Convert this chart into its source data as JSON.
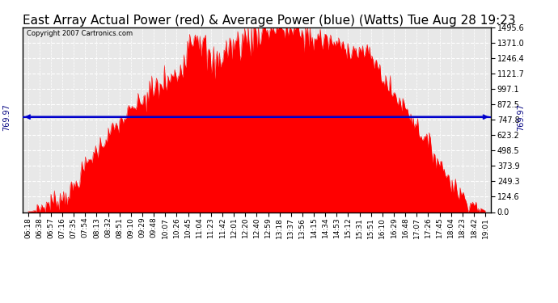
{
  "title": "East Array Actual Power (red) & Average Power (blue) (Watts) Tue Aug 28 19:23",
  "copyright_text": "Copyright 2007 Cartronics.com",
  "avg_power": 769.97,
  "y_max": 1495.6,
  "y_min": 0.0,
  "y_ticks": [
    0.0,
    124.6,
    249.3,
    373.9,
    498.5,
    623.2,
    747.8,
    872.5,
    997.1,
    1121.7,
    1246.4,
    1371.0,
    1495.6
  ],
  "x_labels": [
    "06:18",
    "06:38",
    "06:57",
    "07:16",
    "07:35",
    "07:54",
    "08:13",
    "08:32",
    "08:51",
    "09:10",
    "09:29",
    "09:48",
    "10:07",
    "10:26",
    "10:45",
    "11:04",
    "11:23",
    "11:42",
    "12:01",
    "12:20",
    "12:40",
    "12:59",
    "13:18",
    "13:37",
    "13:56",
    "14:15",
    "14:34",
    "14:53",
    "15:12",
    "15:31",
    "15:51",
    "16:10",
    "16:29",
    "16:48",
    "17:07",
    "17:26",
    "17:45",
    "18:04",
    "18:23",
    "18:42",
    "19:01"
  ],
  "background_color": "#ffffff",
  "plot_bg_color": "#e8e8e8",
  "grid_color": "#ffffff",
  "red_color": "#ff0000",
  "blue_color": "#0000cc",
  "title_fontsize": 11,
  "tick_fontsize": 7,
  "label_color": "#000000",
  "avg_label_color": "#000080",
  "power_values": [
    5,
    30,
    80,
    120,
    200,
    370,
    500,
    620,
    720,
    820,
    900,
    980,
    1050,
    1100,
    1370,
    1430,
    1200,
    1280,
    1350,
    1400,
    1460,
    1490,
    1495,
    1480,
    1450,
    1420,
    1390,
    1360,
    1330,
    1300,
    1260,
    1100,
    950,
    850,
    700,
    550,
    400,
    250,
    130,
    60,
    10
  ]
}
